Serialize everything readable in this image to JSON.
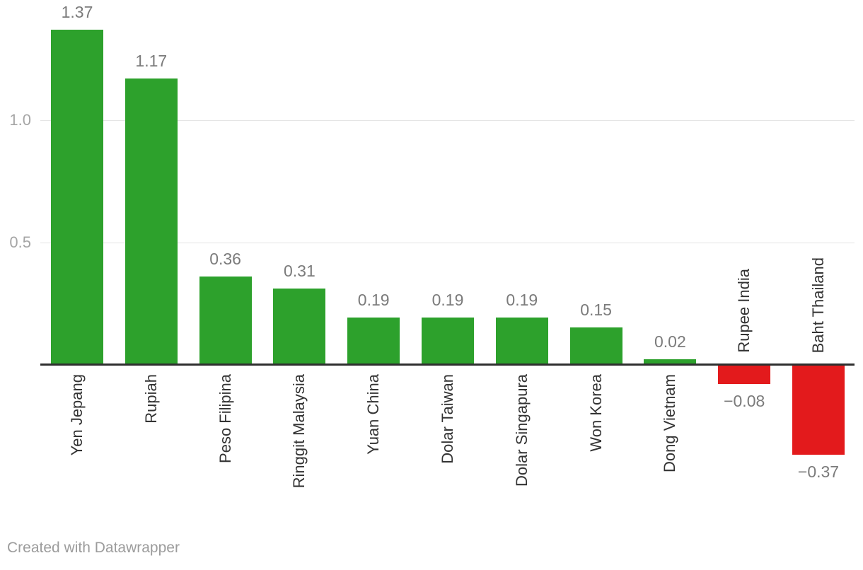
{
  "chart_data": {
    "type": "bar",
    "categories": [
      "Yen Jepang",
      "Rupiah",
      "Peso Filipina",
      "Ringgit Malaysia",
      "Yuan China",
      "Dolar Taiwan",
      "Dolar Singapura",
      "Won Korea",
      "Dong Vietnam",
      "Rupee India",
      "Baht Thailand"
    ],
    "values": [
      1.37,
      1.17,
      0.36,
      0.31,
      0.19,
      0.19,
      0.19,
      0.15,
      0.02,
      -0.08,
      -0.37
    ],
    "value_labels": [
      "1.37",
      "1.17",
      "0.36",
      "0.31",
      "0.19",
      "0.19",
      "0.19",
      "0.15",
      "0.02",
      "−0.08",
      "−0.37"
    ],
    "title": "",
    "xlabel": "",
    "ylabel": "",
    "ylim": [
      -0.5,
      1.49
    ],
    "yticks": [
      {
        "value": 0.5,
        "label": "0.5"
      },
      {
        "value": 1.0,
        "label": "1.0"
      }
    ],
    "grid": "horizontal",
    "legend": "none",
    "colors": {
      "positive": "#2da12c",
      "negative": "#e31a1c",
      "axis_line": "#2f2f2f",
      "gridline": "#e4e4e4",
      "value_label": "#7b7b7b",
      "tick_label": "#a5a5a5",
      "category_label": "#333333"
    }
  },
  "footer": {
    "credit": "Created with Datawrapper"
  }
}
